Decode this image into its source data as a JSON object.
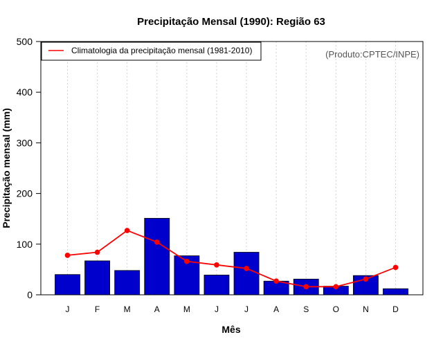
{
  "chart_data": {
    "type": "bar",
    "title": "Precipitação Mensal (1990): Região 63",
    "xlabel": "Mês",
    "ylabel": "Precipitação mensal (mm)",
    "ylim": [
      0,
      500
    ],
    "yticks": [
      0,
      100,
      200,
      300,
      400,
      500
    ],
    "categories": [
      "J",
      "F",
      "M",
      "A",
      "M",
      "J",
      "J",
      "A",
      "S",
      "O",
      "N",
      "D"
    ],
    "series": [
      {
        "name": "Precipitação mensal (1990)",
        "type": "bar",
        "color": "#0000cd",
        "values": [
          40,
          67,
          48,
          151,
          77,
          39,
          84,
          27,
          31,
          17,
          38,
          12
        ]
      },
      {
        "name": "Climatologia da precipitação mensal (1981-2010)",
        "type": "line",
        "color": "#ff0000",
        "values": [
          78,
          84,
          127,
          104,
          66,
          59,
          52,
          27,
          16,
          16,
          31,
          54
        ]
      }
    ],
    "grid": "vertical dotted",
    "legend": {
      "position": "top-left",
      "entries": [
        "Climatologia da precipitação mensal (1981-2010)"
      ]
    },
    "annotation": "(Produto:CPTEC/INPE)"
  }
}
